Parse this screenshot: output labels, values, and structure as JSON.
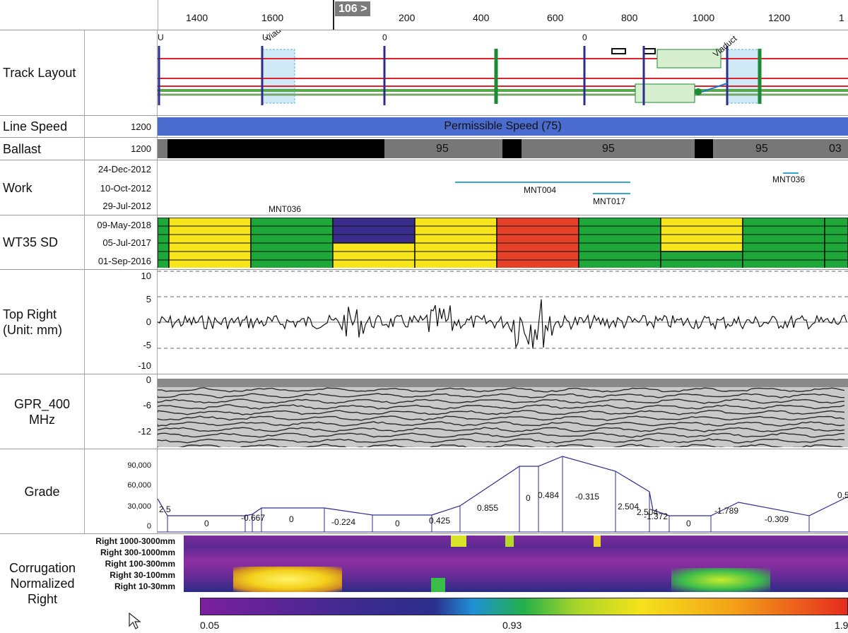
{
  "ruler": {
    "ticks": [
      "1400",
      "1600",
      "200",
      "400",
      "600",
      "800",
      "1000",
      "1200",
      "1"
    ],
    "marker": "106 >"
  },
  "track_layout": {
    "label": "Track Layout",
    "structure_labels": [
      "U",
      "U",
      "0",
      "0"
    ],
    "viaduct_labels": [
      "Viaduct",
      "Viaduct"
    ]
  },
  "line_speed": {
    "label": "Line Speed",
    "value": "1200",
    "bar_text": "Permissible Speed (75)",
    "color": "#4a6ccf"
  },
  "ballast": {
    "label": "Ballast",
    "value": "1200",
    "segments": [
      "95",
      "95",
      "95",
      "03"
    ]
  },
  "work": {
    "label": "Work",
    "dates": [
      "24-Dec-2012",
      "10-Oct-2012",
      "29-Jul-2012"
    ],
    "items": [
      "MNT004",
      "MNT017",
      "MNT036",
      "MNT036"
    ]
  },
  "wt35": {
    "label": "WT35 SD",
    "dates": [
      "09-May-2018",
      "05-Jul-2017",
      "01-Sep-2016"
    ]
  },
  "top_right": {
    "label": "Top Right\n(Unit: mm)",
    "ticks": [
      "10",
      "5",
      "0",
      "-5",
      "-10"
    ]
  },
  "gpr": {
    "label": "GPR_400\nMHz",
    "ticks": [
      "0",
      "-6",
      "-12"
    ]
  },
  "grade": {
    "label": "Grade",
    "ticks": [
      "90,000",
      "60,000",
      "30,000",
      "0"
    ],
    "values": [
      "2.5",
      "0",
      "-0.667",
      "0",
      "-0.224",
      "0",
      "0.425",
      "0.855",
      "0",
      "0.484",
      "-0.315",
      "2.504",
      "2.504",
      "-1.372",
      "0",
      "-1.789",
      "-0.309",
      "0.5"
    ]
  },
  "corrugation": {
    "label": "Corrugation\nNormalized\nRight",
    "bands": [
      "Right 1000-3000mm",
      "Right 300-1000mm",
      "Right 100-300mm",
      "Right 30-100mm",
      "Right 10-30mm"
    ],
    "scale": [
      "0.05",
      "0.93",
      "1.9"
    ]
  },
  "icons": [
    "cursor-icon"
  ]
}
